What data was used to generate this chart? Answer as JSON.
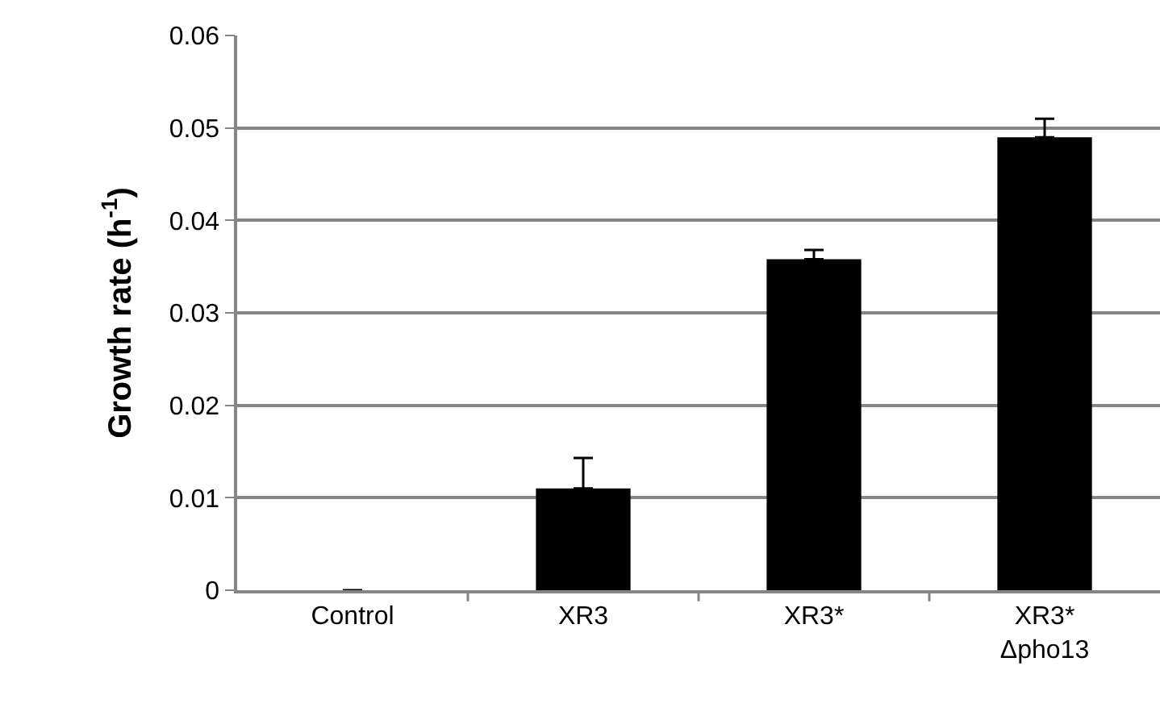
{
  "chart_data": {
    "type": "bar",
    "ylabel": "Growth rate (h$^{-1}$)",
    "categories": [
      "Control",
      "XR3",
      "XR3*",
      "XR3*\nΔpho13"
    ],
    "values": [
      0,
      0.011,
      0.0358,
      0.049
    ],
    "errors": [
      null,
      [
        0.011,
        0.0143
      ],
      [
        0.0358,
        0.0368
      ],
      [
        0.049,
        0.051
      ]
    ],
    "color": "#000000",
    "ylim": [
      0,
      0.06
    ],
    "yticks": [
      0,
      0.01,
      0.02,
      0.03,
      0.04,
      0.05,
      0.06
    ],
    "grid": "y",
    "legend": false
  }
}
